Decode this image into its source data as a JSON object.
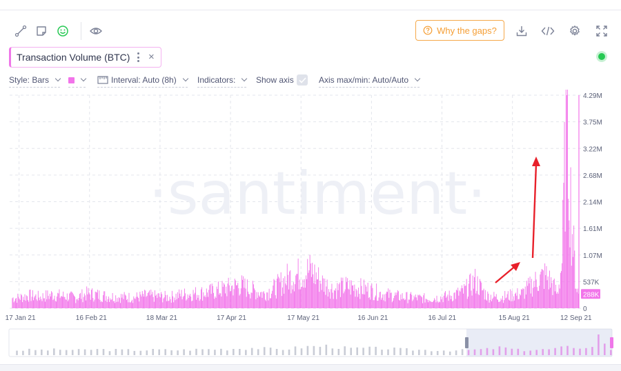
{
  "toolbar": {
    "icons": [
      "draw-line-icon",
      "sticky-note-icon",
      "smiley-icon",
      "eye-icon",
      "download-icon",
      "embed-code-icon",
      "gear-icon",
      "fullscreen-icon"
    ],
    "gaps_label": "Why the gaps?"
  },
  "metric": {
    "label": "Transaction Volume (BTC)",
    "color": "#f274ea"
  },
  "settings": {
    "style": "Style: Bars",
    "interval": "Interval: Auto (8h)",
    "indicators": "Indicators:",
    "show_axis": "Show axis",
    "axis_maxmin": "Axis max/min: Auto/Auto"
  },
  "watermark": "·santiment·",
  "chart_data": {
    "type": "bar",
    "title": "Transaction Volume (BTC)",
    "interval": "8h",
    "x_ticks": [
      "17 Jan 21",
      "16 Feb 21",
      "18 Mar 21",
      "17 Apr 21",
      "17 May 21",
      "16 Jun 21",
      "16 Jul 21",
      "15 Aug 21",
      "12 Sep 21"
    ],
    "y_ticks": [
      "4.29M",
      "3.75M",
      "3.22M",
      "2.68M",
      "2.14M",
      "1.61M",
      "1.07M",
      "537K",
      "0"
    ],
    "y_range": [
      0,
      4290000
    ],
    "last_value_label": "288K",
    "grid": true,
    "x": [
      "2021-01-16",
      "2021-01-21",
      "2021-01-26",
      "2021-01-31",
      "2021-02-05",
      "2021-02-10",
      "2021-02-15",
      "2021-02-20",
      "2021-02-25",
      "2021-03-02",
      "2021-03-07",
      "2021-03-12",
      "2021-03-17",
      "2021-03-22",
      "2021-03-27",
      "2021-04-01",
      "2021-04-06",
      "2021-04-11",
      "2021-04-16",
      "2021-04-21",
      "2021-04-26",
      "2021-05-01",
      "2021-05-06",
      "2021-05-11",
      "2021-05-16",
      "2021-05-21",
      "2021-05-26",
      "2021-05-31",
      "2021-06-05",
      "2021-06-10",
      "2021-06-15",
      "2021-06-20",
      "2021-06-25",
      "2021-06-30",
      "2021-07-05",
      "2021-07-10",
      "2021-07-15",
      "2021-07-20",
      "2021-07-25",
      "2021-07-30",
      "2021-08-04",
      "2021-08-09",
      "2021-08-14",
      "2021-08-19",
      "2021-08-24",
      "2021-08-29",
      "2021-09-01",
      "2021-09-03",
      "2021-09-05",
      "2021-09-07",
      "2021-09-09",
      "2021-09-11",
      "2021-09-12"
    ],
    "values": [
      210000,
      260000,
      230000,
      280000,
      250000,
      220000,
      300000,
      270000,
      240000,
      230000,
      220000,
      260000,
      240000,
      230000,
      280000,
      300000,
      320000,
      360000,
      420000,
      480000,
      380000,
      300000,
      420000,
      620000,
      700000,
      780000,
      520000,
      380000,
      450000,
      420000,
      380000,
      300000,
      260000,
      230000,
      210000,
      200000,
      220000,
      260000,
      340000,
      560000,
      260000,
      220000,
      260000,
      300000,
      520000,
      680000,
      480000,
      300000,
      960000,
      4290000,
      1800000,
      500000,
      288000
    ],
    "navigator_selection": [
      "2021-07-16",
      "2021-09-12"
    ]
  }
}
